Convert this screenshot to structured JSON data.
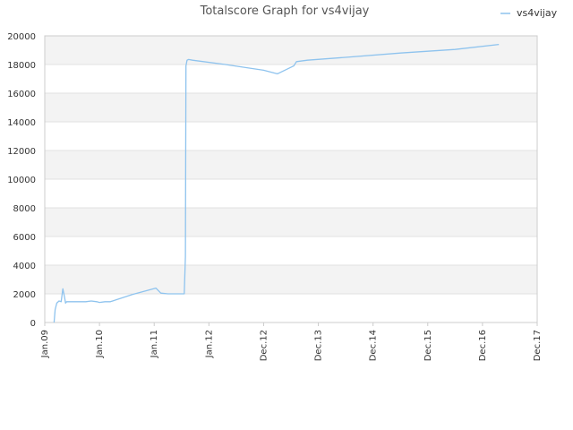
{
  "chart_data": {
    "type": "line",
    "title": "Totalscore Graph for vs4vijay",
    "xlabel": "",
    "ylabel": "",
    "legend": {
      "position": "top-right"
    },
    "colors": {
      "line": "#8ec3ee",
      "band": "#f3f3f3",
      "grid": "#e2e2e2",
      "axis": "#cccccc"
    },
    "x_ticks": [
      "Jan.09",
      "Jan.10",
      "Jan.11",
      "Jan.12",
      "Dec.12",
      "Dec.13",
      "Dec.14",
      "Dec.15",
      "Dec.16",
      "Dec.17"
    ],
    "x_range": [
      0,
      9
    ],
    "y_ticks": [
      "0",
      "2000",
      "4000",
      "6000",
      "8000",
      "10000",
      "12000",
      "14000",
      "16000",
      "18000",
      "20000"
    ],
    "ylim": [
      0,
      20000
    ],
    "grid": true,
    "series": [
      {
        "name": "vs4vijay",
        "x": [
          0.17,
          0.19,
          0.22,
          0.26,
          0.3,
          0.33,
          0.36,
          0.38,
          0.4,
          0.45,
          0.55,
          0.75,
          0.85,
          0.95,
          1.0,
          1.1,
          1.2,
          1.6,
          2.03,
          2.12,
          2.25,
          2.55,
          2.57,
          2.58,
          2.6,
          2.63,
          2.7,
          3.3,
          4.0,
          4.25,
          4.28,
          4.55,
          4.6,
          4.8,
          5.5,
          6.5,
          7.5,
          8.3
        ],
        "y": [
          0,
          900,
          1350,
          1500,
          1450,
          2350,
          1800,
          1350,
          1450,
          1450,
          1450,
          1450,
          1500,
          1450,
          1400,
          1450,
          1450,
          1950,
          2400,
          2050,
          2000,
          2000,
          4600,
          17900,
          18300,
          18350,
          18300,
          18000,
          17600,
          17350,
          17400,
          17900,
          18200,
          18300,
          18500,
          18800,
          19050,
          19400
        ]
      }
    ]
  }
}
